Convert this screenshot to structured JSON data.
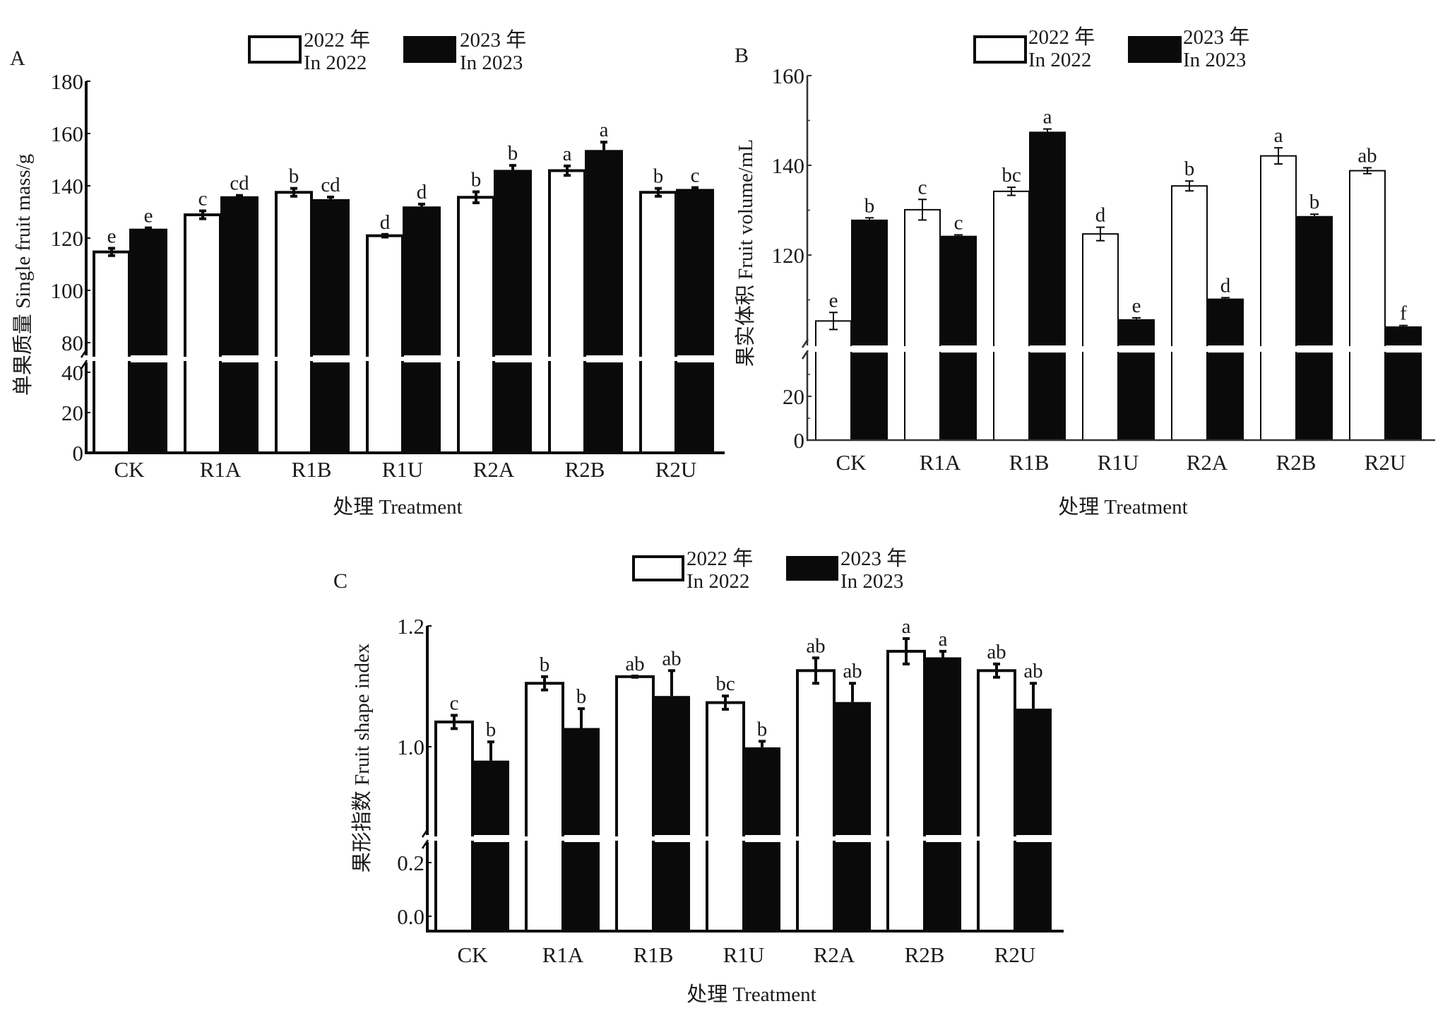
{
  "figure": {
    "legend": {
      "items": [
        {
          "line1": "2022 年",
          "line2": "In 2022",
          "fill": "#ffffff"
        },
        {
          "line1": "2023 年",
          "line2": "In 2023",
          "fill": "#0a0a0a"
        }
      ]
    }
  },
  "chart_data": [
    {
      "type": "bar",
      "panel_label": "A",
      "title": "",
      "xlabel": "处理 Treatment",
      "ylabel": "单果质量 Single fruit mass/g",
      "categories": [
        "CK",
        "R1A",
        "R1B",
        "R1U",
        "R2A",
        "R2B",
        "R2U"
      ],
      "axis_break": true,
      "ylim_lower": [
        0,
        45
      ],
      "ylim_upper": [
        75,
        180
      ],
      "yticks_lower": [
        "0",
        "20",
        "40"
      ],
      "yticks_upper": [
        "80",
        "100",
        "120",
        "140",
        "160",
        "180"
      ],
      "legend_position": "top-center",
      "grid": false,
      "series": [
        {
          "name": "2022 年 In 2022",
          "values": [
            114.7,
            128.9,
            137.5,
            120.9,
            135.6,
            145.8,
            137.5
          ],
          "errors": [
            1.4,
            1.5,
            1.5,
            0.5,
            2.1,
            1.8,
            1.5
          ],
          "letters": [
            "e",
            "c",
            "b",
            "d",
            "b",
            "a",
            "b"
          ]
        },
        {
          "name": "2023 年 In 2023",
          "values": [
            123.6,
            136.0,
            134.9,
            132.1,
            146.1,
            153.7,
            138.8
          ],
          "errors": [
            0.3,
            0.3,
            0.8,
            0.9,
            1.7,
            3.0,
            0.5
          ],
          "letters": [
            "e",
            "cd",
            "cd",
            "d",
            "b",
            "a",
            "c"
          ]
        }
      ]
    },
    {
      "type": "bar",
      "panel_label": "B",
      "title": "",
      "xlabel": "处理 Treatment",
      "ylabel": "果实体积 Fruit volume/mL",
      "categories": [
        "CK",
        "R1A",
        "R1B",
        "R1U",
        "R2A",
        "R2B",
        "R2U"
      ],
      "axis_break": true,
      "ylim_lower": [
        0,
        40
      ],
      "ylim_upper": [
        100,
        160
      ],
      "yticks_lower": [
        "0",
        "20"
      ],
      "yticks_upper": [
        "120",
        "140",
        "160"
      ],
      "legend_position": "top-center",
      "grid": false,
      "series": [
        {
          "name": "2022 年 In 2022",
          "values": [
            105.3,
            130.1,
            134.2,
            124.7,
            135.4,
            142.1,
            138.8
          ],
          "errors": [
            1.9,
            2.3,
            0.9,
            1.5,
            1.1,
            1.8,
            0.65
          ],
          "letters": [
            "e",
            "c",
            "bc",
            "d",
            "b",
            "a",
            "ab"
          ]
        },
        {
          "name": "2023 年 In 2023",
          "values": [
            127.9,
            124.3,
            147.5,
            105.7,
            110.3,
            128.7,
            104.1
          ],
          "errors": [
            0.4,
            0.2,
            0.6,
            0.3,
            0.2,
            0.4,
            0.2
          ],
          "letters": [
            "b",
            "c",
            "a",
            "e",
            "d",
            "b",
            "f"
          ]
        }
      ]
    },
    {
      "type": "bar",
      "panel_label": "C",
      "title": "",
      "xlabel": "处理 Treatment",
      "ylabel": "果形指数 Fruit shape index",
      "categories": [
        "CK",
        "R1A",
        "R1B",
        "R1U",
        "R2A",
        "R2B",
        "R2U"
      ],
      "axis_break": true,
      "ylim_lower": [
        0.0,
        0.25
      ],
      "ylim_upper": [
        0.855,
        1.2
      ],
      "yticks_lower": [
        "0.0",
        "0.2"
      ],
      "yticks_upper": [
        "1.0",
        "1.2"
      ],
      "legend_position": "top-center",
      "grid": false,
      "series": [
        {
          "name": "2022 年 In 2022",
          "values": [
            1.041,
            1.105,
            1.116,
            1.073,
            1.126,
            1.158,
            1.126
          ],
          "errors": [
            0.011,
            0.011,
            0.001,
            0.011,
            0.021,
            0.021,
            0.011
          ],
          "letters": [
            "c",
            "b",
            "ab",
            "bc",
            "ab",
            "a",
            "ab"
          ]
        },
        {
          "name": "2023 年 In 2023",
          "values": [
            0.977,
            1.031,
            1.084,
            0.999,
            1.074,
            1.148,
            1.063
          ],
          "errors": [
            0.031,
            0.032,
            0.042,
            0.01,
            0.031,
            0.01,
            0.042
          ],
          "letters": [
            "b",
            "b",
            "ab",
            "b",
            "ab",
            "a",
            "ab"
          ]
        }
      ]
    }
  ]
}
